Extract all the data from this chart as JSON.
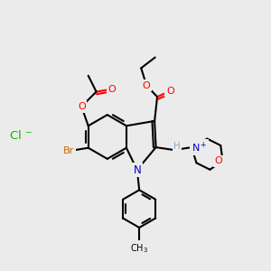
{
  "background_color": "#ebebeb",
  "bond_color": "#000000",
  "atom_colors": {
    "O": "#ff0000",
    "N_indole": "#0000cc",
    "N_morph": "#0000cc",
    "Br": "#cc6600",
    "Cl": "#00bb00",
    "H": "#88aacc",
    "C": "#000000"
  },
  "lw": 1.5,
  "fig_width": 3.0,
  "fig_height": 3.0,
  "dpi": 100
}
